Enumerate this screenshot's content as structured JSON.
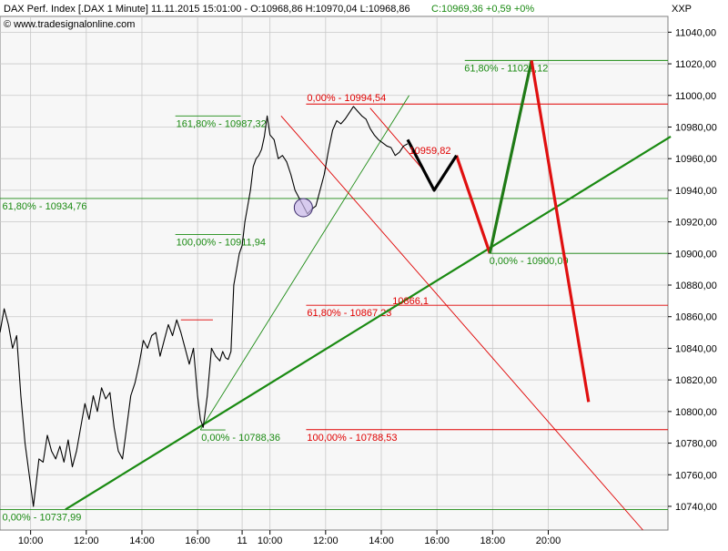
{
  "header": {
    "title": "DAX Perf. Index [.DAX  1 Minute]  11.11.2015 15:01:00 - O:10968,86 H:10970,04 L:10968,86",
    "close": "C:10969,36  +0,59  +0%",
    "source": "© www.tradesignalonline.com",
    "symbol": "XXP"
  },
  "colors": {
    "price": "#000000",
    "green": "#1a8a12",
    "red": "#e00000",
    "proj_green": "#1f7a16",
    "proj_red": "#e01010",
    "proj_black": "#000000",
    "grid": "#c8c8c8",
    "background": "#f7f7f7"
  },
  "chart_data": {
    "type": "line",
    "title": "DAX Perf. Index [.DAX  1 Minute]",
    "y_axis": {
      "ylim": [
        10725,
        11050
      ],
      "ticks": [
        10740,
        10760,
        10780,
        10800,
        10820,
        10840,
        10860,
        10880,
        10900,
        10920,
        10940,
        10960,
        10980,
        11000,
        11020,
        11040
      ],
      "tick_labels": [
        "10740,00",
        "10760,00",
        "10780,00",
        "10800,00",
        "10820,00",
        "10840,00",
        "10860,00",
        "10880,00",
        "10900,00",
        "10920,00",
        "10940,00",
        "10960,00",
        "10980,00",
        "11000,00",
        "11020,00",
        "11040,00"
      ]
    },
    "x_axis": {
      "tick_labels": [
        "10:00",
        "12:00",
        "14:00",
        "16:00",
        "11",
        "10:00",
        "12:00",
        "14:00",
        "16:00",
        "18:00",
        "20:00"
      ],
      "ticks_t": [
        10.0,
        12.0,
        14.0,
        16.0,
        17.6,
        18.6,
        20.6,
        22.6,
        24.6,
        26.6,
        28.6
      ],
      "xlim": [
        8.9,
        32.9
      ],
      "grid": true
    },
    "price_series": {
      "name": "DAX",
      "t": [
        8.9,
        9.05,
        9.2,
        9.35,
        9.5,
        9.65,
        9.8,
        9.95,
        10.1,
        10.2,
        10.3,
        10.45,
        10.6,
        10.75,
        10.9,
        11.05,
        11.2,
        11.35,
        11.5,
        11.65,
        11.8,
        11.95,
        12.1,
        12.25,
        12.4,
        12.55,
        12.7,
        12.85,
        13.0,
        13.15,
        13.3,
        13.45,
        13.6,
        13.75,
        13.9,
        14.05,
        14.2,
        14.35,
        14.5,
        14.65,
        14.8,
        14.95,
        15.1,
        15.25,
        15.4,
        15.55,
        15.7,
        15.85,
        16.0,
        16.1,
        16.2,
        16.35,
        16.5,
        16.65,
        16.8,
        16.9,
        17.0,
        17.1,
        17.2,
        17.3,
        17.4,
        17.5,
        17.6,
        17.7,
        17.8,
        17.9,
        18.0,
        18.1,
        18.2,
        18.3,
        18.4,
        18.5,
        18.6,
        18.75,
        18.9,
        19.05,
        19.2,
        19.35,
        19.5,
        19.65,
        19.8,
        19.95,
        20.1,
        20.25,
        20.4,
        20.55,
        20.7,
        20.85,
        21.0,
        21.15,
        21.3,
        21.45,
        21.6,
        21.75,
        21.9,
        22.05,
        22.2,
        22.35,
        22.5,
        22.65,
        22.8,
        22.95,
        23.1,
        23.25,
        23.4,
        23.55
      ],
      "y": [
        10850,
        10865,
        10855,
        10840,
        10848,
        10810,
        10780,
        10760,
        10740,
        10755,
        10770,
        10768,
        10785,
        10775,
        10770,
        10778,
        10768,
        10782,
        10765,
        10775,
        10790,
        10805,
        10795,
        10810,
        10800,
        10815,
        10808,
        10812,
        10790,
        10775,
        10770,
        10790,
        10810,
        10818,
        10830,
        10845,
        10840,
        10848,
        10850,
        10835,
        10845,
        10855,
        10848,
        10858,
        10850,
        10840,
        10830,
        10840,
        10810,
        10795,
        10790,
        10810,
        10840,
        10835,
        10832,
        10838,
        10834,
        10833,
        10838,
        10880,
        10890,
        10900,
        10905,
        10920,
        10930,
        10940,
        10955,
        10960,
        10962,
        10966,
        10974,
        10987,
        10975,
        10972,
        10960,
        10962,
        10958,
        10950,
        10940,
        10935,
        10930,
        10925,
        10928,
        10930,
        10940,
        10950,
        10965,
        10978,
        10984,
        10982,
        10985,
        10989,
        10993,
        10990,
        10987,
        10985,
        10979,
        10975,
        10972,
        10970,
        10968,
        10967,
        10962,
        10964,
        10968,
        10969.36
      ]
    },
    "projection_black": {
      "t": [
        23.55,
        24.5,
        25.3
      ],
      "y": [
        10972,
        10940,
        10962
      ]
    },
    "projection_green": {
      "t": [
        26.5,
        28.0
      ],
      "y": [
        10900.09,
        11022.12
      ]
    },
    "projection_red": {
      "t": [
        28.0,
        30.05
      ],
      "y": [
        11022.12,
        10806
      ]
    },
    "lines": [
      {
        "name": "trend-long",
        "color": "green",
        "width": 2.2,
        "t": [
          11.25,
          33.0
        ],
        "y": [
          10737.99,
          10974
        ]
      },
      {
        "name": "trend-short",
        "color": "green",
        "width": 0.9,
        "t": [
          16.1,
          23.6
        ],
        "y": [
          10788.36,
          11000
        ]
      },
      {
        "name": "fan-red",
        "color": "red",
        "width": 0.9,
        "t": [
          19.0,
          32.0
        ],
        "y": [
          10987,
          10725
        ]
      },
      {
        "name": "fan-red-short",
        "color": "red",
        "width": 0.9,
        "t": [
          22.2,
          24.1
        ],
        "y": [
          10992,
          10953
        ]
      }
    ],
    "hlines": [
      {
        "value": 11022.12,
        "t_from": 25.6,
        "t_to": 33.0,
        "color": "green",
        "label": "61,80% - 11022,12",
        "label_t": 25.55,
        "label_pos": "below"
      },
      {
        "value": 10994.54,
        "t_from": 19.9,
        "t_to": 33.0,
        "color": "red",
        "label": "0,00% - 10994,54",
        "label_t": 19.9,
        "label_pos": "above"
      },
      {
        "value": 10987,
        "t_from": 15.2,
        "t_to": 17.55,
        "color": "green",
        "label": "161,80% - 10987,32",
        "label_t": 15.2,
        "label_pos": "below"
      },
      {
        "value": 10934.76,
        "t_from": 8.9,
        "t_to": 33.0,
        "color": "green",
        "label": "61,80% - 10934,76",
        "label_t": 8.95,
        "label_pos": "below"
      },
      {
        "value": 10911.94,
        "t_from": 15.2,
        "t_to": 17.55,
        "color": "green",
        "label": "100,00% - 10911,94",
        "label_t": 15.2,
        "label_pos": "below"
      },
      {
        "value": 10900.09,
        "t_from": 26.5,
        "t_to": 33.0,
        "color": "green",
        "label": "0,00% - 10900,09",
        "label_t": 26.45,
        "label_pos": "below"
      },
      {
        "value": 10867.23,
        "t_from": 19.9,
        "t_to": 33.0,
        "color": "red",
        "label": "61,80% - 10867,23",
        "label_t": 19.9,
        "label_pos": "below"
      },
      {
        "value": 10858,
        "t_from": 15.4,
        "t_to": 16.55,
        "color": "red",
        "label": "",
        "label_t": 15.4,
        "label_pos": "above"
      },
      {
        "value": 10788.36,
        "t_from": 16.1,
        "t_to": 17.0,
        "color": "green",
        "label": "0,00% - 10788,36",
        "label_t": 16.1,
        "label_pos": "below"
      },
      {
        "value": 10788.53,
        "t_from": 19.9,
        "t_to": 33.0,
        "color": "red",
        "label": "100,00% - 10788,53",
        "label_t": 19.9,
        "label_pos": "below"
      },
      {
        "value": 10737.99,
        "t_from": 8.9,
        "t_to": 33.0,
        "color": "green",
        "label": "0,00% - 10737,99",
        "label_t": 8.95,
        "label_pos": "below"
      }
    ],
    "annotations": [
      {
        "text": "10959,82",
        "t": 23.6,
        "y": 10963,
        "color": "red"
      },
      {
        "text": "10866,1",
        "t": 23.0,
        "y": 10868,
        "color": "red"
      }
    ],
    "marker": {
      "t": 19.8,
      "y": 10929
    }
  }
}
